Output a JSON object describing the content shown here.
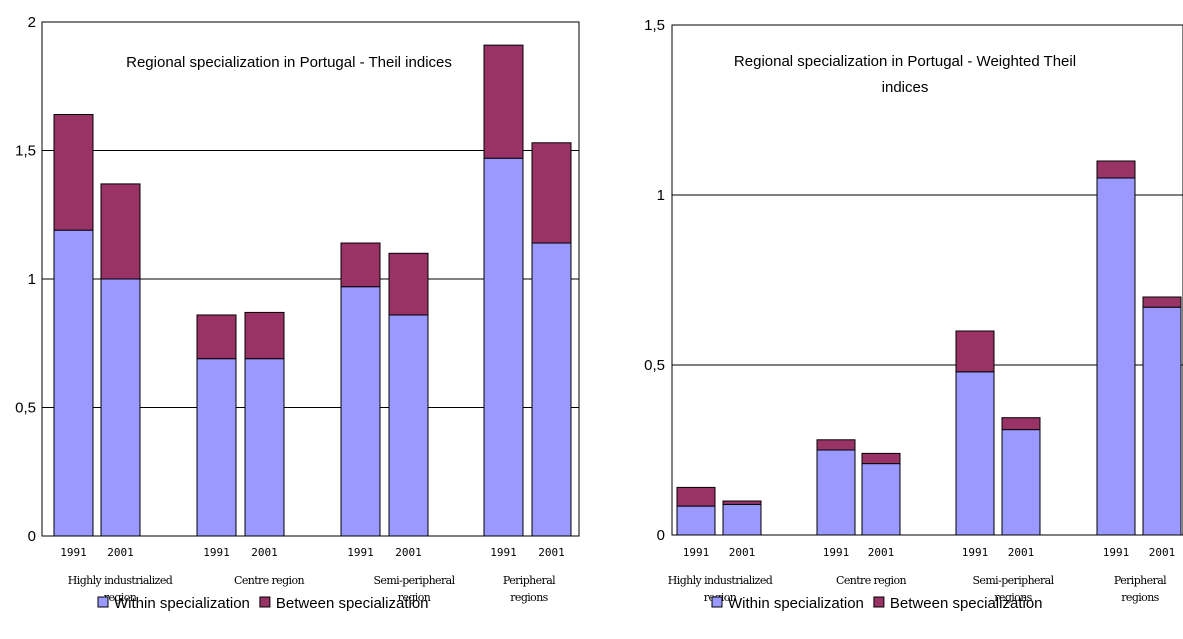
{
  "chart_data": [
    {
      "type": "bar",
      "stacked": true,
      "title": "Regional specialization in Portugal - Theil indices",
      "groups": [
        "Highly industrialized region",
        "Centre region",
        "Semi-peripheral region",
        "Peripheral regions"
      ],
      "years": [
        "1991",
        "2001"
      ],
      "yticks": [
        "0",
        "0,5",
        "1",
        "1,5",
        "2"
      ],
      "ylim": [
        0,
        2
      ],
      "grid": true,
      "legend_position": "bottom",
      "series": [
        {
          "name": "Within specialization",
          "color": "#9999ff",
          "values": [
            1.19,
            1.0,
            0.69,
            0.69,
            0.97,
            0.86,
            1.47,
            1.14
          ]
        },
        {
          "name": "Between specialization",
          "color": "#993366",
          "values": [
            0.45,
            0.37,
            0.17,
            0.18,
            0.17,
            0.24,
            0.44,
            0.39
          ]
        }
      ]
    },
    {
      "type": "bar",
      "stacked": true,
      "title": "Regional specialization in Portugal - Weighted Theil indices",
      "groups": [
        "Highly industrialized region",
        "Centre region",
        "Semi-peripheral regions",
        "Peripheral regions"
      ],
      "years": [
        "1991",
        "2001"
      ],
      "yticks": [
        "0",
        "0,5",
        "1",
        "1,5"
      ],
      "ylim": [
        0,
        1.5
      ],
      "grid": true,
      "legend_position": "bottom",
      "series": [
        {
          "name": "Within specialization",
          "color": "#9999ff",
          "values": [
            0.085,
            0.09,
            0.25,
            0.21,
            0.48,
            0.31,
            1.05,
            0.67
          ]
        },
        {
          "name": "Between specialization",
          "color": "#993366",
          "values": [
            0.055,
            0.01,
            0.03,
            0.03,
            0.12,
            0.035,
            0.05,
            0.03
          ]
        }
      ]
    }
  ]
}
